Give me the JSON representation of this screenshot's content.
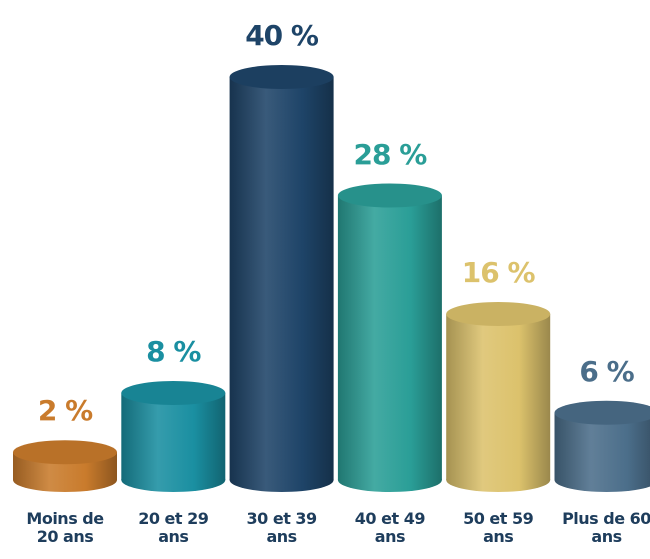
{
  "chart_data": {
    "type": "cylinder",
    "categories": [
      "Moins de 20 ans",
      "20 et 29 ans",
      "30 et 39 ans",
      "40 et 49 ans",
      "50 et 59 ans",
      "Plus de 60 ans"
    ],
    "values": [
      2,
      8,
      40,
      28,
      16,
      6
    ],
    "value_labels": [
      "2 %",
      "8 %",
      "40 %",
      "28 %",
      "16 %",
      "6 %"
    ],
    "colors": [
      "#c97b2c",
      "#1a8fa1",
      "#1e4468",
      "#2a9e97",
      "#dcc26c",
      "#4b6e8a"
    ]
  }
}
